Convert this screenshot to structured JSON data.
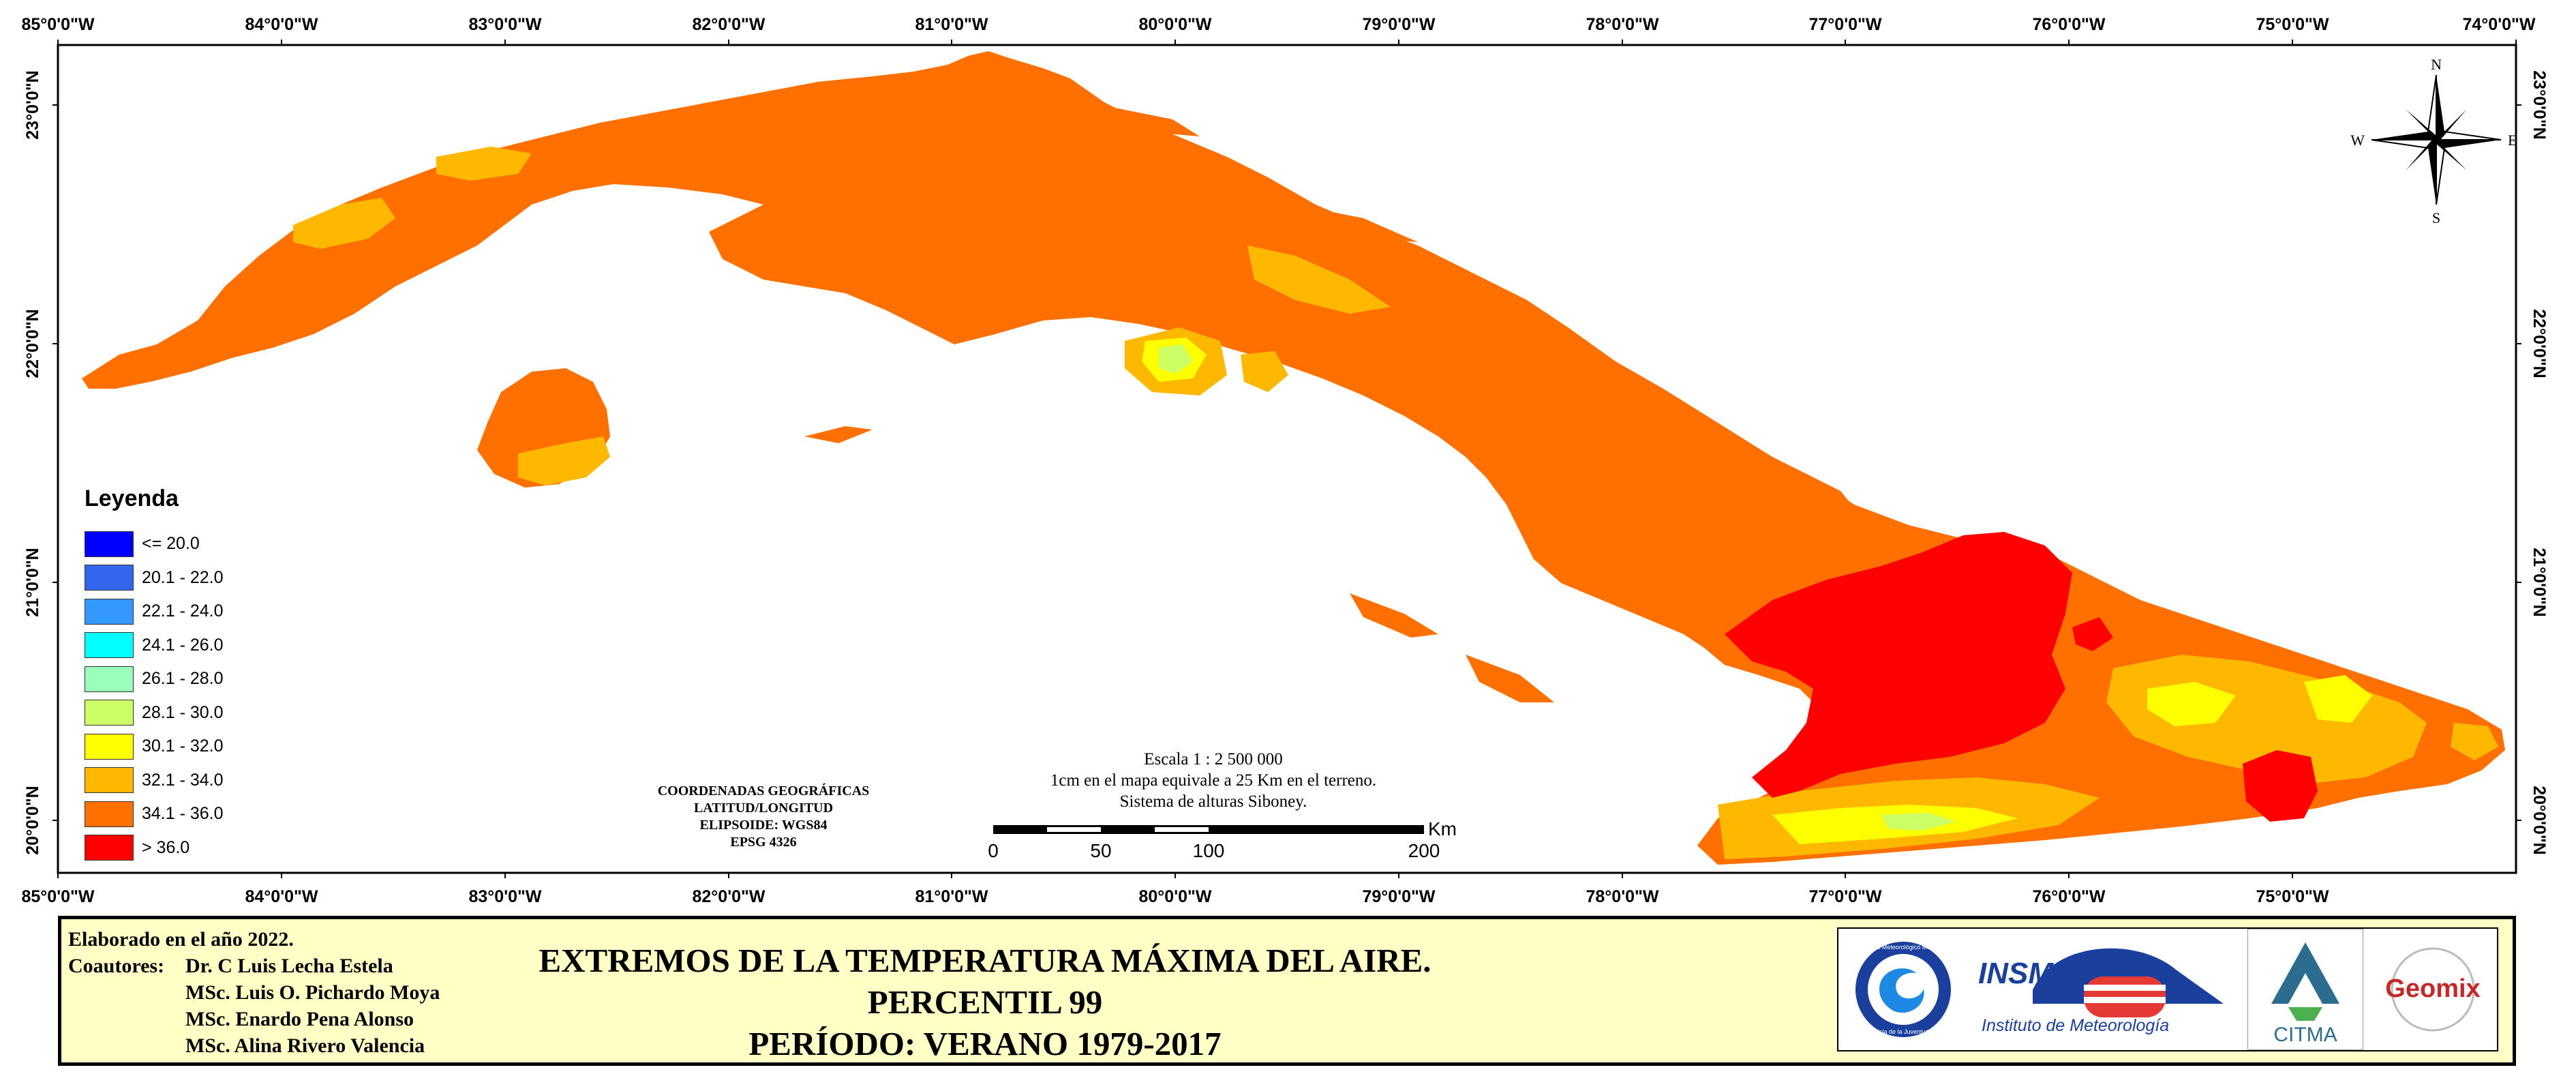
{
  "map": {
    "lon_labels": [
      "85°0'0\"W",
      "84°0'0\"W",
      "83°0'0\"W",
      "82°0'0\"W",
      "81°0'0\"W",
      "80°0'0\"W",
      "79°0'0\"W",
      "78°0'0\"W",
      "77°0'0\"W",
      "76°0'0\"W",
      "75°0'0\"W",
      "74°0'0\"W"
    ],
    "lat_labels": [
      "23°0'0\"N",
      "22°0'0\"N",
      "21°0'0\"N",
      "20°0'0\"N"
    ],
    "north_arrow": {
      "n": "N",
      "s": "S",
      "e": "E",
      "w": "W"
    }
  },
  "legend": {
    "title": "Leyenda",
    "items": [
      {
        "label": "<= 20.0",
        "color": "#0000ff"
      },
      {
        "label": "20.1 - 22.0",
        "color": "#3366ee"
      },
      {
        "label": "22.1 - 24.0",
        "color": "#3399ff"
      },
      {
        "label": "24.1 - 26.0",
        "color": "#00ffff"
      },
      {
        "label": "26.1 - 28.0",
        "color": "#99ffbb"
      },
      {
        "label": "28.1 - 30.0",
        "color": "#ccff66"
      },
      {
        "label": "30.1 - 32.0",
        "color": "#ffff00"
      },
      {
        "label": "32.1 - 34.0",
        "color": "#ffb800"
      },
      {
        "label": "34.1 - 36.0",
        "color": "#ff7000"
      },
      {
        "label": "> 36.0",
        "color": "#ff0000"
      }
    ]
  },
  "coords": {
    "line1": "COORDENADAS GEOGRÁFICAS",
    "line2": "LATITUD/LONGITUD",
    "line3": "ELIPSOIDE: WGS84",
    "line4": "EPSG 4326"
  },
  "scale": {
    "line1": "Escala 1 : 2 500 000",
    "line2": "1cm en el mapa equivale a 25 Km en el terreno.",
    "line3": "Sistema de alturas Siboney.",
    "ticks": [
      "0",
      "50",
      "100",
      "200"
    ],
    "unit": "Km"
  },
  "footer": {
    "elaborated": "Elaborado en el año 2022.",
    "coauthors_label": "Coautores:",
    "coauthors": [
      "Dr. C Luis Lecha Estela",
      "MSc. Luis O. Pichardo Moya",
      "MSc. Enardo Pena Alonso",
      "MSc. Alina Rivero Valencia"
    ],
    "title_line1": "EXTREMOS DE LA TEMPERATURA MÁXIMA DEL AIRE. PERCENTIL 99",
    "title_line2": "PERÍODO: VERANO 1979-2017",
    "logos": {
      "smm_top": "Servicio Meteorológico Municipal",
      "smm_bottom": "Isla de la Juventud",
      "insmet": "INSMET",
      "insmet_sub": "Instituto de Meteorología",
      "citma": "CITMA",
      "geomix": "Geomix"
    }
  }
}
